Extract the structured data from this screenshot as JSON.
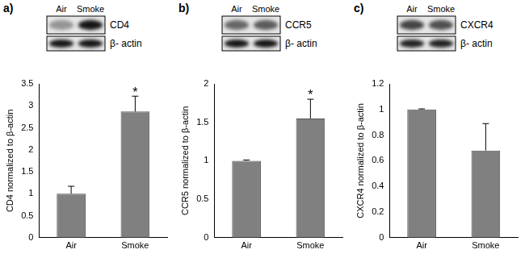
{
  "chart_data": [
    {
      "type": "bar",
      "title": "a)",
      "blot": {
        "lanes": [
          "Air",
          "Smoke"
        ],
        "rows": [
          "CD4",
          "β- actin"
        ]
      },
      "categories": [
        "Air",
        "Smoke"
      ],
      "values": [
        1.0,
        2.87
      ],
      "errors": [
        0.17,
        0.35
      ],
      "color": "#808080",
      "y_label": "CD4 normalized to β-actin",
      "ylim": [
        0,
        3.5
      ],
      "yticks": [
        0,
        0.5,
        1,
        1.5,
        2,
        2.5,
        3,
        3.5
      ],
      "grid": false,
      "annotations": [
        {
          "category": "Smoke",
          "text": "*"
        }
      ]
    },
    {
      "type": "bar",
      "title": "b)",
      "blot": {
        "lanes": [
          "Air",
          "Smoke"
        ],
        "rows": [
          "CCR5",
          "β- actin"
        ]
      },
      "categories": [
        "Air",
        "Smoke"
      ],
      "values": [
        1.0,
        1.55
      ],
      "errors": [
        0.01,
        0.25
      ],
      "color": "#808080",
      "y_label": "CCR5 normalized to β-actin",
      "ylim": [
        0,
        2
      ],
      "yticks": [
        0,
        0.5,
        1,
        1.5,
        2
      ],
      "grid": false,
      "annotations": [
        {
          "category": "Smoke",
          "text": "*"
        }
      ]
    },
    {
      "type": "bar",
      "title": "c)",
      "blot": {
        "lanes": [
          "Air",
          "Smoke"
        ],
        "rows": [
          "CXCR4",
          "β- actin"
        ]
      },
      "categories": [
        "Air",
        "Smoke"
      ],
      "values": [
        1.0,
        0.68
      ],
      "errors": [
        0.005,
        0.21
      ],
      "color": "#808080",
      "y_label": "CXCR4 normalized to β-actin",
      "ylim": [
        0,
        1.2
      ],
      "yticks": [
        0,
        0.2,
        0.4,
        0.6,
        0.8,
        1,
        1.2
      ],
      "grid": false,
      "annotations": []
    }
  ]
}
